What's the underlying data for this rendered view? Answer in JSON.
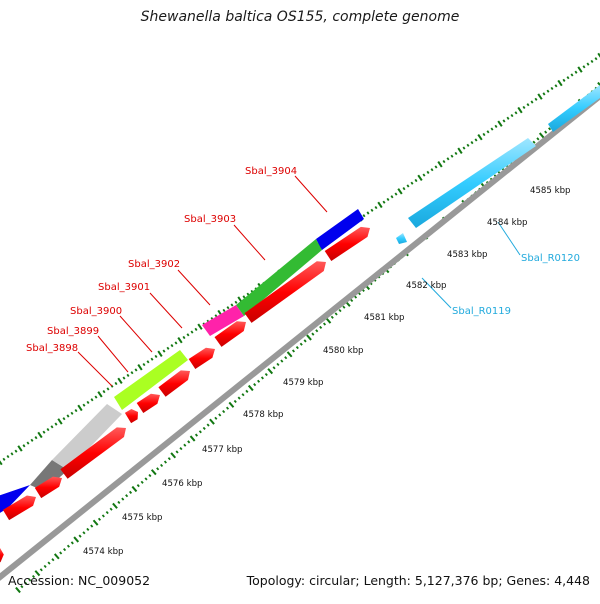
{
  "header": {
    "title": "Shewanella baltica OS155, complete genome"
  },
  "footer": {
    "accession": "Accession: NC_009052",
    "summary": "Topology: circular; Length: 5,127,376 bp; Genes: 4,448"
  },
  "colors": {
    "cds_red": "#ff0000",
    "rna_cyan": "#33ccff",
    "backbone": "#999999",
    "tick_green": "#117711",
    "label_red": "#dd0000",
    "label_cyan": "#22aadd",
    "cog_blue": "#0000ee",
    "cog_green": "#33bb33",
    "cog_magenta": "#ff22aa",
    "cog_lime": "#aaff22",
    "cog_lightgray": "#cccccc",
    "cog_darkgray": "#777777"
  },
  "scale_labels": [
    "4574 kbp",
    "4575 kbp",
    "4576 kbp",
    "4577 kbp",
    "4578 kbp",
    "4579 kbp",
    "4580 kbp",
    "4581 kbp",
    "4582 kbp",
    "4583 kbp",
    "4584 kbp",
    "4585 kbp"
  ],
  "gene_labels": [
    {
      "text": "Sbal_3898",
      "kind": "red"
    },
    {
      "text": "Sbal_3899",
      "kind": "red"
    },
    {
      "text": "Sbal_3900",
      "kind": "red"
    },
    {
      "text": "Sbal_3901",
      "kind": "red"
    },
    {
      "text": "Sbal_3902",
      "kind": "red"
    },
    {
      "text": "Sbal_3903",
      "kind": "red"
    },
    {
      "text": "Sbal_3904",
      "kind": "red"
    },
    {
      "text": "Sbal_R0119",
      "kind": "cyan"
    },
    {
      "text": "Sbal_R0120",
      "kind": "cyan"
    }
  ]
}
